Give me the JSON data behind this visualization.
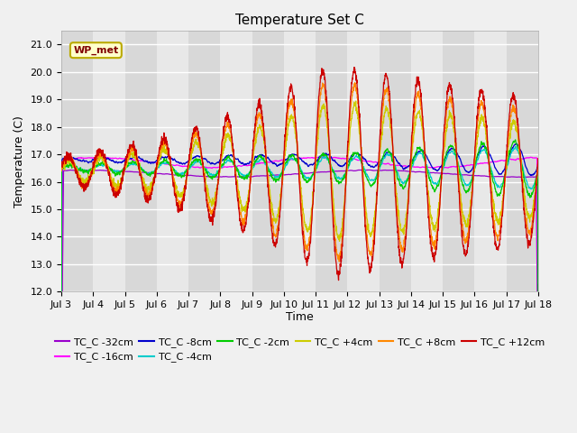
{
  "title": "Temperature Set C",
  "xlabel": "Time",
  "ylabel": "Temperature (C)",
  "ylim": [
    12.0,
    21.5
  ],
  "yticks": [
    12.0,
    13.0,
    14.0,
    15.0,
    16.0,
    17.0,
    18.0,
    19.0,
    20.0,
    21.0
  ],
  "xtick_labels": [
    "Jul 3",
    "Jul 4",
    "Jul 5",
    "Jul 6",
    "Jul 7",
    "Jul 8",
    "Jul 9",
    "Jul 10",
    "Jul 11",
    "Jul 12",
    "Jul 13",
    "Jul 14",
    "Jul 15",
    "Jul 16",
    "Jul 17",
    "Jul 18"
  ],
  "n_days": 15,
  "series_colors": [
    "#9900cc",
    "#ff00ff",
    "#0000cc",
    "#00cccc",
    "#00cc00",
    "#cccc00",
    "#ff8800",
    "#cc0000"
  ],
  "series_labels": [
    "TC_C -32cm",
    "TC_C -16cm",
    "TC_C -8cm",
    "TC_C -4cm",
    "TC_C -2cm",
    "TC_C +4cm",
    "TC_C +8cm",
    "TC_C +12cm"
  ],
  "fig_bg_color": "#f0f0f0",
  "plot_bg_color": "#e8e8e8",
  "band_color_dark": "#d8d8d8",
  "band_color_light": "#e8e8e8",
  "grid_color": "#ffffff",
  "annotation_text": "WP_met",
  "title_fontsize": 11,
  "axis_fontsize": 9,
  "tick_fontsize": 8,
  "legend_fontsize": 8
}
